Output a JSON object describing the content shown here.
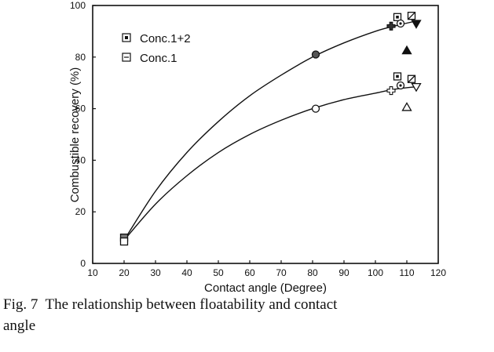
{
  "chart_data": {
    "type": "scatter",
    "xlabel": "Contact angle (Degree)",
    "ylabel": "Combustible recovery (%)",
    "xlim": [
      10,
      120
    ],
    "ylim": [
      0,
      100
    ],
    "xticks": [
      "10",
      "20",
      "30",
      "40",
      "50",
      "60",
      "70",
      "80",
      "90",
      "100",
      "110",
      "120"
    ],
    "yticks": [
      "0",
      "20",
      "40",
      "60",
      "80",
      "100"
    ],
    "legend_position": "upper-left",
    "grid": false,
    "series": [
      {
        "name": "Conc.1+2",
        "points": [
          {
            "x": 20,
            "y": 10,
            "marker": "square-filled"
          },
          {
            "x": 81,
            "y": 81,
            "marker": "circle-filled"
          },
          {
            "x": 105,
            "y": 92,
            "marker": "cross-filled"
          },
          {
            "x": 107,
            "y": 95.5,
            "marker": "square-dot"
          },
          {
            "x": 108,
            "y": 93,
            "marker": "circle-dot"
          },
          {
            "x": 110,
            "y": 82.5,
            "marker": "triangle-filled"
          },
          {
            "x": 111.5,
            "y": 96,
            "marker": "square-slash"
          },
          {
            "x": 113,
            "y": 93,
            "marker": "triangle-down-filled"
          }
        ],
        "fit": [
          [
            20,
            9
          ],
          [
            30,
            28
          ],
          [
            40,
            43
          ],
          [
            50,
            55
          ],
          [
            60,
            65
          ],
          [
            70,
            73
          ],
          [
            80,
            80
          ],
          [
            90,
            85.5
          ],
          [
            100,
            90
          ],
          [
            106,
            92
          ],
          [
            113,
            94
          ]
        ]
      },
      {
        "name": "Conc.1",
        "points": [
          {
            "x": 20,
            "y": 8.5,
            "marker": "square-open"
          },
          {
            "x": 81,
            "y": 60,
            "marker": "circle-open"
          },
          {
            "x": 105,
            "y": 67,
            "marker": "cross-open"
          },
          {
            "x": 107,
            "y": 72.5,
            "marker": "square-dot"
          },
          {
            "x": 108,
            "y": 69,
            "marker": "circle-dot"
          },
          {
            "x": 110,
            "y": 60.5,
            "marker": "triangle-open"
          },
          {
            "x": 111.5,
            "y": 71.5,
            "marker": "square-slash"
          },
          {
            "x": 113,
            "y": 68.5,
            "marker": "triangle-down-open"
          }
        ],
        "fit": [
          [
            20,
            9
          ],
          [
            30,
            23
          ],
          [
            40,
            34
          ],
          [
            50,
            43
          ],
          [
            60,
            50
          ],
          [
            70,
            55.5
          ],
          [
            80,
            60
          ],
          [
            90,
            63.5
          ],
          [
            100,
            66
          ],
          [
            106,
            67.5
          ],
          [
            113,
            68.5
          ]
        ]
      }
    ]
  },
  "caption": {
    "line1": "Fig. 7  The relationship between floatability and contact",
    "line2": "angle"
  }
}
